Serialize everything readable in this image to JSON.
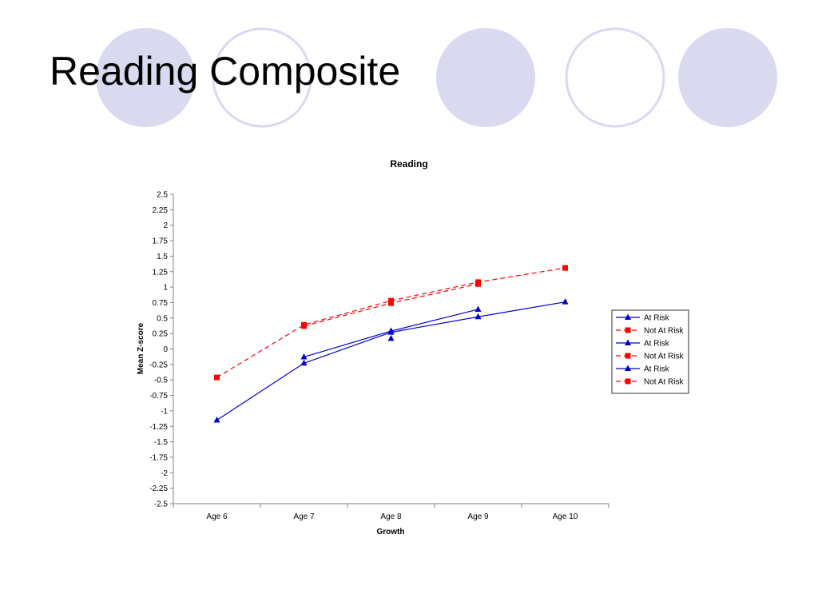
{
  "slide": {
    "title": "Reading Composite"
  },
  "decoration": {
    "fill_color": "#d9d9ef",
    "ring_color": "#d9d9ef"
  },
  "chart_data": {
    "type": "line",
    "title": "Reading",
    "xlabel": "Growth",
    "ylabel": "Mean Z-score",
    "categories": [
      "Age 6",
      "Age 7",
      "Age 8",
      "Age 9",
      "Age 10"
    ],
    "ylim": [
      -2.5,
      2.5
    ],
    "ytick_step": 0.25,
    "yticks": [
      "2.5",
      "2.25",
      "2",
      "1.75",
      "1.5",
      "1.25",
      "1",
      "0.75",
      "0.5",
      "0.25",
      "0",
      "-0.25",
      "-0.5",
      "-0.75",
      "-1",
      "-1.25",
      "-1.5",
      "-1.75",
      "-2",
      "-2.25",
      "-2.5"
    ],
    "grid": false,
    "legend_position": "right",
    "series": [
      {
        "name": "At Risk",
        "values": [
          -1.15,
          -0.23,
          0.27,
          0.52,
          0.76
        ],
        "color": "#0000cc",
        "marker": "triangle",
        "dash": "solid"
      },
      {
        "name": "Not At Risk",
        "values": [
          -0.46,
          0.39,
          0.78,
          1.08,
          1.31
        ],
        "color": "#ff0000",
        "marker": "square",
        "dash": "dashed"
      },
      {
        "name": "At Risk",
        "values": [
          null,
          -0.13,
          0.29,
          0.64,
          null
        ],
        "color": "#0000cc",
        "marker": "triangle",
        "dash": "solid"
      },
      {
        "name": "Not At Risk",
        "values": [
          null,
          0.37,
          0.74,
          1.05,
          null
        ],
        "color": "#ff0000",
        "marker": "square",
        "dash": "dashed"
      },
      {
        "name": "At Risk",
        "values": [
          null,
          null,
          0.17,
          null,
          null
        ],
        "color": "#0000cc",
        "marker": "triangle",
        "dash": "solid"
      },
      {
        "name": "Not At Risk",
        "values": [
          null,
          null,
          null,
          null,
          null
        ],
        "color": "#ff0000",
        "marker": "square",
        "dash": "dashed"
      }
    ]
  }
}
